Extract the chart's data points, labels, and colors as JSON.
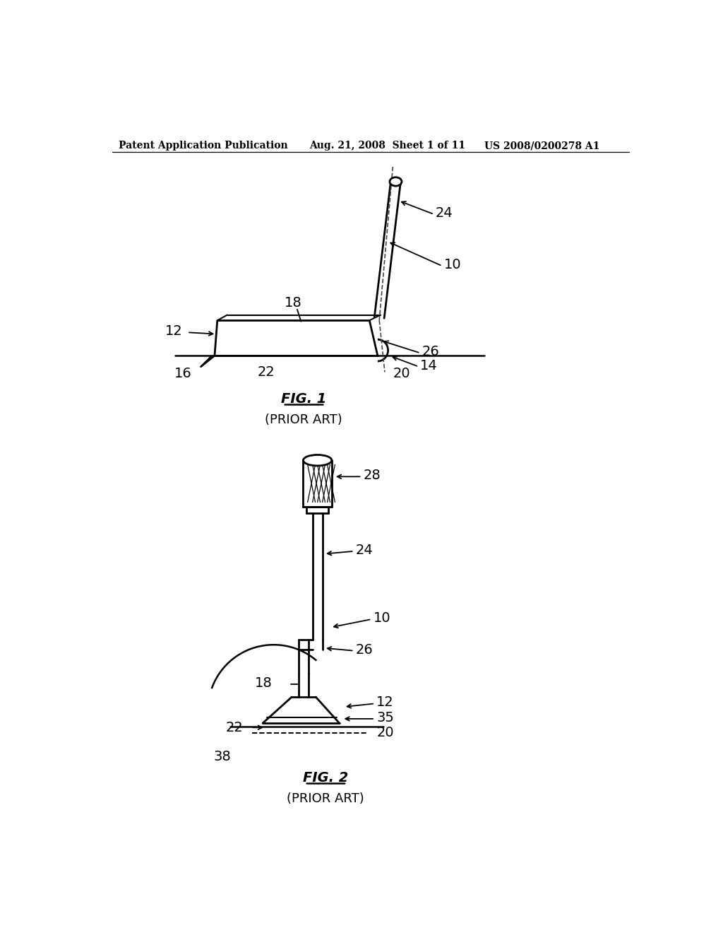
{
  "bg_color": "#ffffff",
  "header_left": "Patent Application Publication",
  "header_center": "Aug. 21, 2008  Sheet 1 of 11",
  "header_right": "US 2008/0200278 A1",
  "line_color": "#000000",
  "text_color": "#000000"
}
